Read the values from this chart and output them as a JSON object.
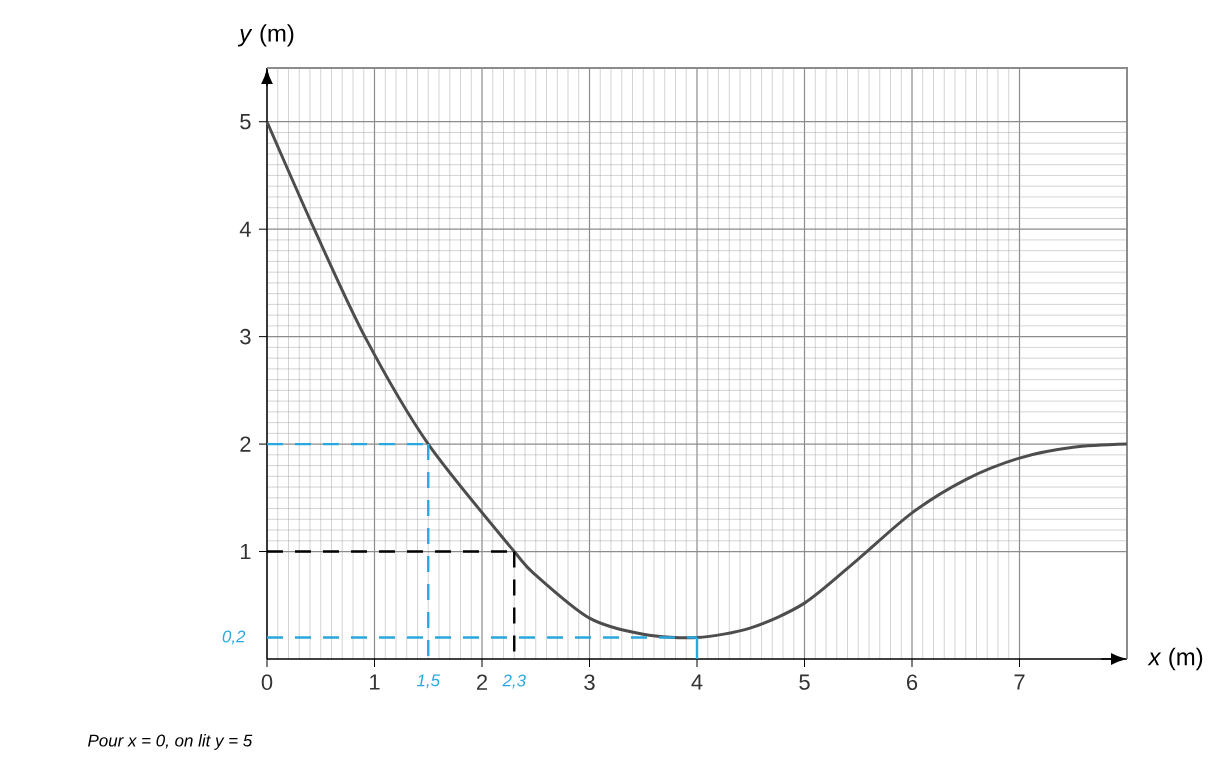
{
  "chart_data": {
    "type": "line",
    "xlabel": "*x* (m)",
    "ylabel": "*y* (m)",
    "xlim": [
      0,
      8
    ],
    "ylim": [
      0,
      5.5
    ],
    "xticks": [
      0,
      1,
      2,
      3,
      4,
      5,
      6,
      7
    ],
    "yticks": [
      1,
      2,
      3,
      4,
      5
    ],
    "grid": true,
    "marker": "none",
    "series": [
      {
        "color": "#4d4d4d",
        "line_style": "solid",
        "x": [
          0,
          0.44,
          0.91,
          1.5,
          2.3,
          2.5,
          3,
          3.5,
          4,
          4.5,
          5,
          5.5,
          6,
          6.5,
          7,
          7.5,
          8
        ],
        "values": [
          5,
          4,
          3,
          2,
          1,
          0.78,
          0.38,
          0.23,
          0.2,
          0.29,
          0.52,
          0.93,
          1.36,
          1.67,
          1.87,
          1.97,
          2
        ]
      },
      {
        "type": "line",
        "color": "#29a8e0",
        "line_style": "dashed",
        "x": [
          0,
          1.5
        ],
        "values": [
          2,
          2
        ]
      },
      {
        "type": "line",
        "color": "#29a8e0",
        "line_style": "dashed",
        "x": [
          1.5,
          1.5
        ],
        "values": [
          2,
          0
        ]
      },
      {
        "type": "line",
        "color": "#29a8e0",
        "line_style": "dashed",
        "x": [
          0,
          4
        ],
        "values": [
          0.2,
          0.2
        ]
      },
      {
        "type": "line",
        "color": "#29a8e0",
        "line_style": "solid",
        "x": [
          4,
          4
        ],
        "values": [
          0.2,
          0
        ]
      },
      {
        "type": "line",
        "color": "#000000",
        "line_style": "dashed",
        "x": [
          0,
          2.3
        ],
        "values": [
          1,
          1
        ]
      },
      {
        "type": "line",
        "color": "#000000",
        "line_style": "dashed",
        "x": [
          2.3,
          2.3
        ],
        "values": [
          1,
          0
        ]
      }
    ],
    "annotations": [
      {
        "text": "0,2",
        "x": 0,
        "y": 0.2
      },
      {
        "text": "1,5",
        "x": 1.5,
        "y": 0
      },
      {
        "text": "2,3",
        "x": 2.3,
        "y": 0
      },
      "Pour x = 0, on lit y = 5"
    ]
  }
}
